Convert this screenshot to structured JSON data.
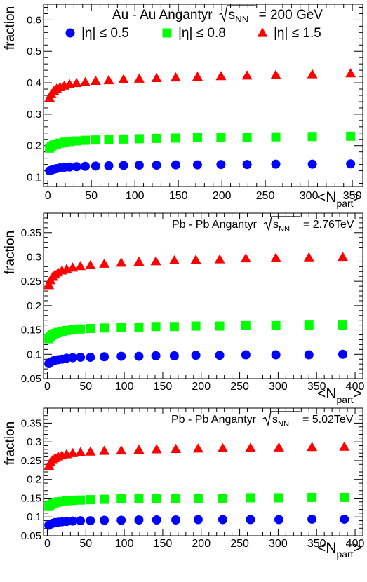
{
  "colors": {
    "series1": "#0000ff",
    "series2": "#00ff00",
    "series3": "#ff0000"
  },
  "chart_data": [
    {
      "type": "scatter",
      "title": "Au - Au Angantyr",
      "energy_label": "= 200 GeV",
      "sqrt_label": "s",
      "sqrt_sub": "NN",
      "xlabel": "<N",
      "xlabel_sub": "part",
      "xlabel_end": ">",
      "ylabel": "fraction",
      "xlim": [
        -5,
        362
      ],
      "ylim": [
        0.07,
        0.65
      ],
      "xticks": [
        0,
        50,
        100,
        150,
        200,
        250,
        300,
        350
      ],
      "yticks": [
        0.1,
        0.2,
        0.3,
        0.4,
        0.5,
        0.6
      ],
      "legend_in_chart": true,
      "series": [
        {
          "name": "|η| ≤ 0.5",
          "marker": "circle",
          "x": [
            2,
            4,
            7,
            10,
            14,
            19,
            25,
            33,
            43,
            55,
            70,
            87,
            105,
            125,
            147,
            172,
            199,
            229,
            262,
            304,
            348
          ],
          "y": [
            0.12,
            0.122,
            0.125,
            0.127,
            0.129,
            0.131,
            0.132,
            0.133,
            0.134,
            0.135,
            0.136,
            0.137,
            0.138,
            0.138,
            0.139,
            0.139,
            0.14,
            0.14,
            0.141,
            0.141,
            0.142
          ]
        },
        {
          "name": "|η| ≤ 0.8",
          "marker": "square",
          "x": [
            2,
            4,
            7,
            10,
            14,
            19,
            25,
            33,
            43,
            55,
            70,
            87,
            105,
            125,
            147,
            172,
            199,
            229,
            262,
            304,
            348
          ],
          "y": [
            0.192,
            0.197,
            0.202,
            0.205,
            0.208,
            0.211,
            0.213,
            0.215,
            0.217,
            0.218,
            0.219,
            0.221,
            0.222,
            0.223,
            0.224,
            0.225,
            0.226,
            0.227,
            0.228,
            0.229,
            0.23
          ]
        },
        {
          "name": "|η| ≤ 1.5",
          "marker": "triangle",
          "x": [
            2,
            4,
            7,
            10,
            14,
            19,
            25,
            33,
            43,
            55,
            70,
            87,
            105,
            125,
            147,
            172,
            199,
            229,
            262,
            304,
            348
          ],
          "y": [
            0.352,
            0.364,
            0.374,
            0.381,
            0.386,
            0.391,
            0.395,
            0.399,
            0.402,
            0.406,
            0.408,
            0.411,
            0.413,
            0.415,
            0.417,
            0.419,
            0.421,
            0.423,
            0.425,
            0.427,
            0.43
          ]
        }
      ]
    },
    {
      "type": "scatter",
      "title": "Pb - Pb Angantyr",
      "energy_label": "= 2.76TeV",
      "sqrt_label": "s",
      "sqrt_sub": "NN",
      "xlabel": "<N",
      "xlabel_sub": "part",
      "xlabel_end": ">",
      "ylabel": "fraction",
      "xlim": [
        -5,
        410
      ],
      "ylim": [
        0.05,
        0.39
      ],
      "xticks": [
        0,
        50,
        100,
        150,
        200,
        250,
        300,
        350,
        400
      ],
      "yticks": [
        0.05,
        0.1,
        0.15,
        0.2,
        0.25,
        0.3,
        0.35
      ],
      "legend_in_chart": false,
      "series": [
        {
          "name": "|η| ≤ 0.5",
          "marker": "circle",
          "x": [
            2,
            4,
            7,
            10,
            14,
            19,
            25,
            33,
            43,
            56,
            74,
            96,
            119,
            141,
            165,
            193,
            224,
            258,
            297,
            340,
            384
          ],
          "y": [
            0.081,
            0.084,
            0.086,
            0.088,
            0.089,
            0.09,
            0.092,
            0.093,
            0.094,
            0.094,
            0.095,
            0.096,
            0.096,
            0.097,
            0.097,
            0.098,
            0.098,
            0.099,
            0.099,
            0.099,
            0.1
          ]
        },
        {
          "name": "|η| ≤ 0.8",
          "marker": "square",
          "x": [
            2,
            4,
            7,
            10,
            14,
            19,
            25,
            33,
            43,
            56,
            74,
            96,
            119,
            141,
            165,
            193,
            224,
            258,
            297,
            340,
            384
          ],
          "y": [
            0.132,
            0.137,
            0.14,
            0.143,
            0.145,
            0.147,
            0.149,
            0.15,
            0.152,
            0.153,
            0.154,
            0.155,
            0.156,
            0.157,
            0.157,
            0.158,
            0.158,
            0.159,
            0.159,
            0.16,
            0.16
          ]
        },
        {
          "name": "|η| ≤ 1.5",
          "marker": "triangle",
          "x": [
            2,
            4,
            7,
            10,
            14,
            19,
            25,
            33,
            43,
            56,
            74,
            96,
            119,
            141,
            165,
            193,
            224,
            258,
            297,
            340,
            384
          ],
          "y": [
            0.242,
            0.252,
            0.259,
            0.264,
            0.268,
            0.272,
            0.275,
            0.278,
            0.281,
            0.283,
            0.286,
            0.288,
            0.29,
            0.291,
            0.293,
            0.294,
            0.295,
            0.297,
            0.298,
            0.299,
            0.3
          ]
        }
      ]
    },
    {
      "type": "scatter",
      "title": "Pb - Pb Angantyr",
      "energy_label": "= 5.02TeV",
      "sqrt_label": "s",
      "sqrt_sub": "NN",
      "xlabel": "<N",
      "xlabel_sub": "part",
      "xlabel_end": ">",
      "ylabel": "fraction",
      "xlim": [
        -5,
        410
      ],
      "ylim": [
        0.05,
        0.39
      ],
      "xticks": [
        0,
        50,
        100,
        150,
        200,
        250,
        300,
        350,
        400
      ],
      "yticks": [
        0.05,
        0.1,
        0.15,
        0.2,
        0.25,
        0.3,
        0.35
      ],
      "legend_in_chart": false,
      "series": [
        {
          "name": "|η| ≤ 0.5",
          "marker": "circle",
          "x": [
            2,
            4,
            7,
            10,
            14,
            19,
            25,
            33,
            43,
            56,
            74,
            96,
            119,
            142,
            167,
            196,
            228,
            264,
            301,
            344,
            386
          ],
          "y": [
            0.078,
            0.081,
            0.083,
            0.085,
            0.086,
            0.087,
            0.088,
            0.089,
            0.09,
            0.09,
            0.091,
            0.091,
            0.092,
            0.092,
            0.092,
            0.093,
            0.093,
            0.093,
            0.093,
            0.094,
            0.094
          ]
        },
        {
          "name": "|η| ≤ 0.8",
          "marker": "square",
          "x": [
            2,
            4,
            7,
            10,
            14,
            19,
            25,
            33,
            43,
            56,
            74,
            96,
            119,
            142,
            167,
            196,
            228,
            264,
            301,
            344,
            386
          ],
          "y": [
            0.128,
            0.132,
            0.135,
            0.138,
            0.14,
            0.141,
            0.143,
            0.144,
            0.145,
            0.146,
            0.147,
            0.148,
            0.148,
            0.149,
            0.149,
            0.15,
            0.15,
            0.151,
            0.151,
            0.152,
            0.152
          ]
        },
        {
          "name": "|η| ≤ 1.5",
          "marker": "triangle",
          "x": [
            2,
            4,
            7,
            10,
            14,
            19,
            25,
            33,
            43,
            56,
            74,
            96,
            119,
            142,
            167,
            196,
            228,
            264,
            301,
            344,
            386
          ],
          "y": [
            0.236,
            0.245,
            0.252,
            0.257,
            0.261,
            0.264,
            0.267,
            0.27,
            0.272,
            0.274,
            0.276,
            0.277,
            0.279,
            0.28,
            0.281,
            0.282,
            0.283,
            0.284,
            0.285,
            0.286,
            0.287
          ]
        }
      ]
    }
  ]
}
